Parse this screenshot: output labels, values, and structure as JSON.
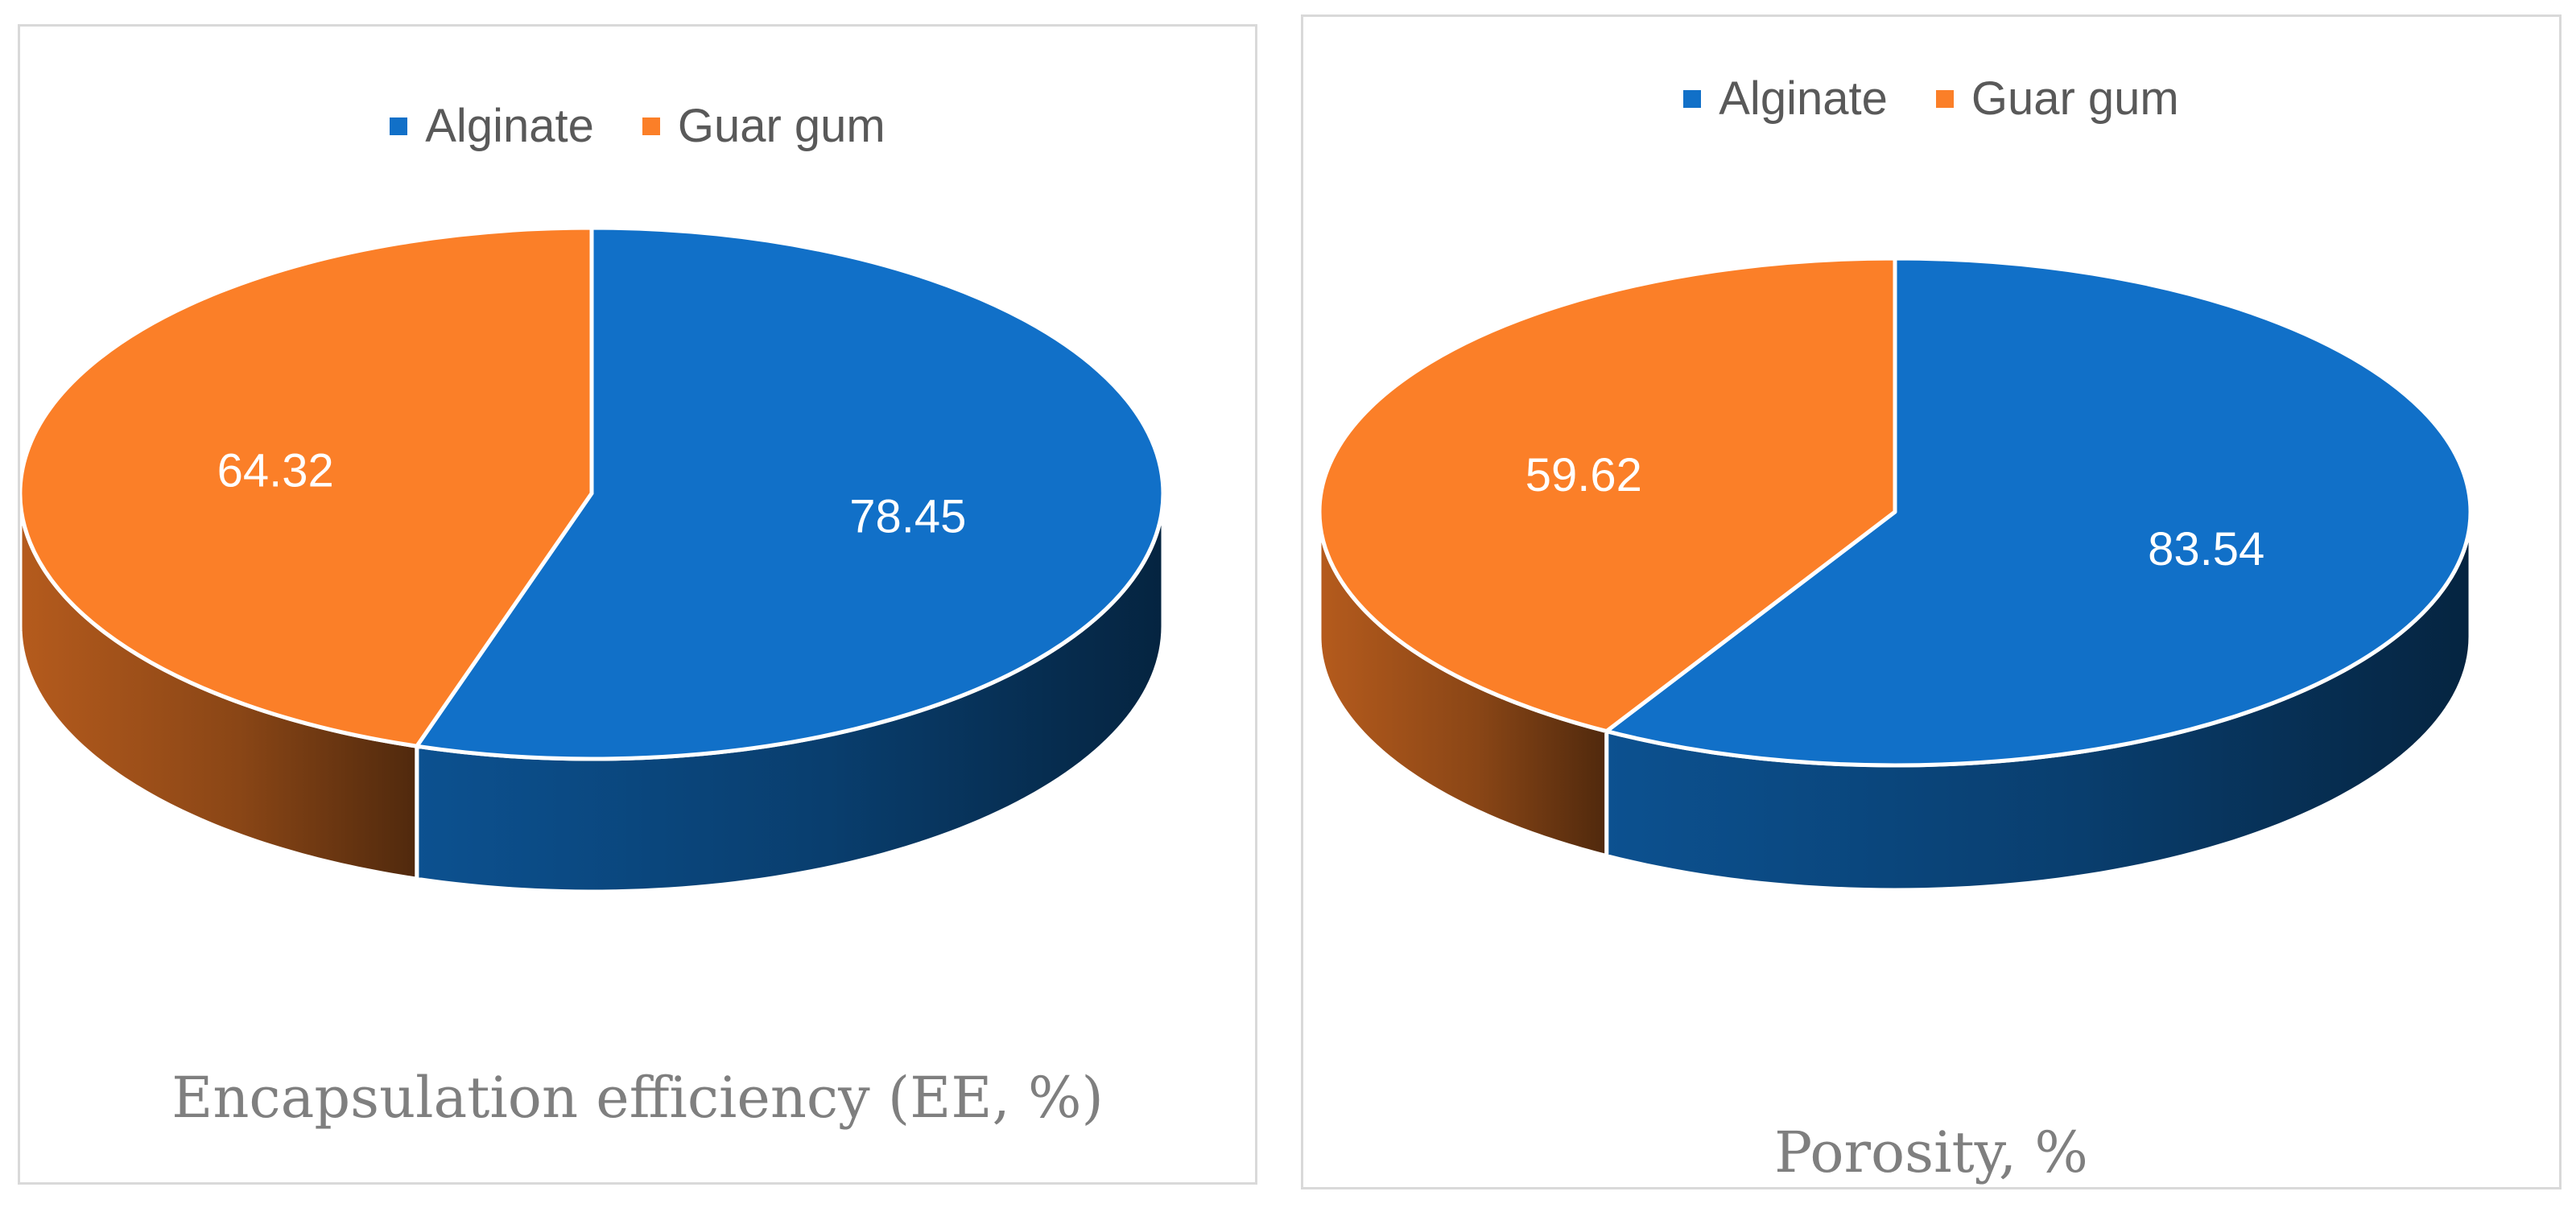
{
  "chart_data": [
    {
      "type": "pie",
      "title": "Encapsulation efficiency (EE, %)",
      "categories": [
        "Alginate",
        "Guar gum"
      ],
      "values": [
        78.45,
        64.32
      ],
      "colors": [
        "#1170c8",
        "#fb7f28"
      ],
      "legend": "top",
      "style": "3d"
    },
    {
      "type": "pie",
      "title": "Porosity, %",
      "categories": [
        "Alginate",
        "Guar gum"
      ],
      "values": [
        83.54,
        59.62
      ],
      "colors": [
        "#1170c8",
        "#fb7f28"
      ],
      "legend": "top",
      "style": "3d"
    }
  ]
}
